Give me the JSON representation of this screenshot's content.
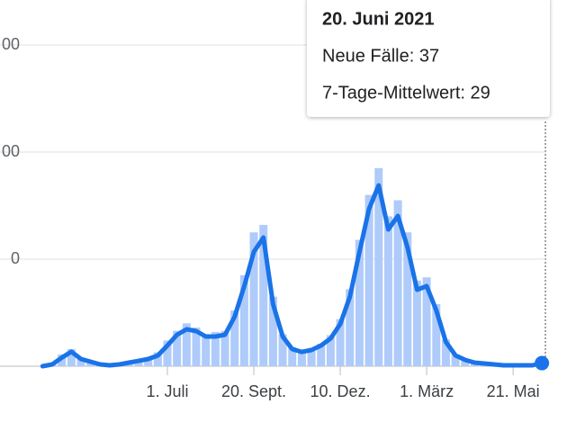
{
  "chart_data": {
    "type": "combo",
    "categories": [
      null,
      null,
      null,
      null,
      null,
      null,
      null,
      null,
      null,
      null,
      null,
      null,
      null,
      "1. Juli",
      null,
      null,
      null,
      null,
      null,
      null,
      null,
      null,
      "20. Sept.",
      null,
      null,
      null,
      null,
      null,
      null,
      null,
      null,
      "10. Dez.",
      null,
      null,
      null,
      null,
      null,
      null,
      null,
      null,
      "1. März",
      null,
      null,
      null,
      null,
      null,
      null,
      null,
      null,
      "21. Mai",
      null,
      null,
      null
    ],
    "series": [
      {
        "type": "bar",
        "color": "#aecbfa",
        "values": [
          0,
          25,
          110,
          160,
          80,
          50,
          20,
          10,
          20,
          40,
          60,
          80,
          130,
          240,
          330,
          400,
          360,
          300,
          320,
          330,
          520,
          850,
          1250,
          1320,
          650,
          300,
          180,
          150,
          170,
          210,
          290,
          440,
          720,
          1180,
          1600,
          1850,
          1400,
          1550,
          1250,
          800,
          830,
          580,
          250,
          110,
          65,
          40,
          30,
          20,
          10,
          10,
          10,
          10,
          37
        ]
      },
      {
        "type": "line",
        "color": "#1a73e8",
        "values": [
          0,
          17,
          80,
          135,
          67,
          42,
          17,
          8,
          17,
          34,
          50,
          67,
          100,
          193,
          294,
          345,
          328,
          277,
          277,
          294,
          462,
          748,
          1067,
          1202,
          580,
          277,
          160,
          134,
          151,
          193,
          260,
          395,
          647,
          1067,
          1471,
          1689,
          1277,
          1403,
          1109,
          714,
          748,
          521,
          227,
          101,
          59,
          34,
          25,
          17,
          8,
          8,
          8,
          8,
          29
        ]
      }
    ],
    "ylim": [
      0,
      3000
    ],
    "yticks": [
      {
        "value": 1000,
        "label": "0"
      },
      {
        "value": 2000,
        "label": "00"
      },
      {
        "value": 3000,
        "label": "00"
      }
    ],
    "grid": true,
    "tooltip": {
      "title": "20. Juni 2021",
      "lines": [
        "Neue Fälle: 37",
        "7-Tage-Mittelwert: 29"
      ]
    }
  }
}
